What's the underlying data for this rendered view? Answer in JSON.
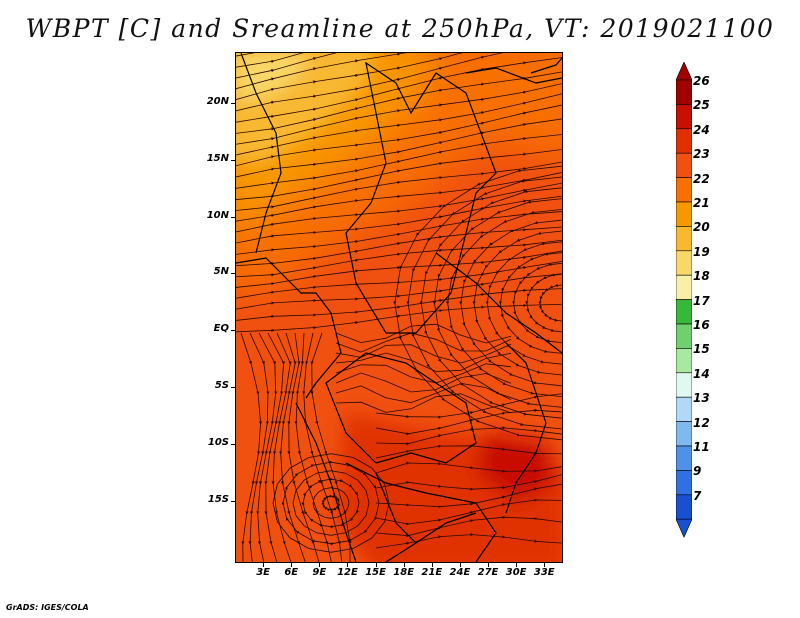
{
  "title": "WBPT [C] and Sreamline at 250hPa, VT: 2019021100",
  "credit": "GrADS: IGES/COLA",
  "map": {
    "lon_range": [
      0,
      35
    ],
    "lat_range": [
      -20.5,
      24.5
    ],
    "y_ticks": [
      "20N",
      "15N",
      "10N",
      "5N",
      "EQ",
      "5S",
      "10S",
      "15S"
    ],
    "y_tick_values": [
      20,
      15,
      10,
      5,
      0,
      -5,
      -10,
      -15
    ],
    "x_ticks": [
      "3E",
      "6E",
      "9E",
      "12E",
      "15E",
      "18E",
      "21E",
      "24E",
      "27E",
      "30E",
      "33E"
    ],
    "x_tick_values": [
      3,
      6,
      9,
      12,
      15,
      18,
      21,
      24,
      27,
      30,
      33
    ]
  },
  "colorbar": {
    "labels": [
      "26",
      "25",
      "24",
      "23",
      "22",
      "21",
      "20",
      "19",
      "18",
      "17",
      "16",
      "15",
      "14",
      "13",
      "12",
      "11",
      "9",
      "7"
    ],
    "colors": [
      "#a00000",
      "#c81000",
      "#e03000",
      "#f05010",
      "#f87000",
      "#f89800",
      "#f8b830",
      "#f8d868",
      "#f8f0a8",
      "#38b838",
      "#70d070",
      "#a8e8a0",
      "#e0f8f0",
      "#b0d8f8",
      "#80b8f0",
      "#5090e8",
      "#3070e0",
      "#1850d0"
    ],
    "top_cap_color": "#a00000",
    "bottom_cap_color": "#1850d0"
  },
  "field_colors": {
    "lightest": "#f8d868",
    "yellow_orange": "#f8b830",
    "orange": "#f89800",
    "dark_orange": "#f87000",
    "red_orange": "#f05010",
    "red": "#e03000",
    "deep_red": "#c81000",
    "line": "#2a0800",
    "border": "#000000"
  }
}
